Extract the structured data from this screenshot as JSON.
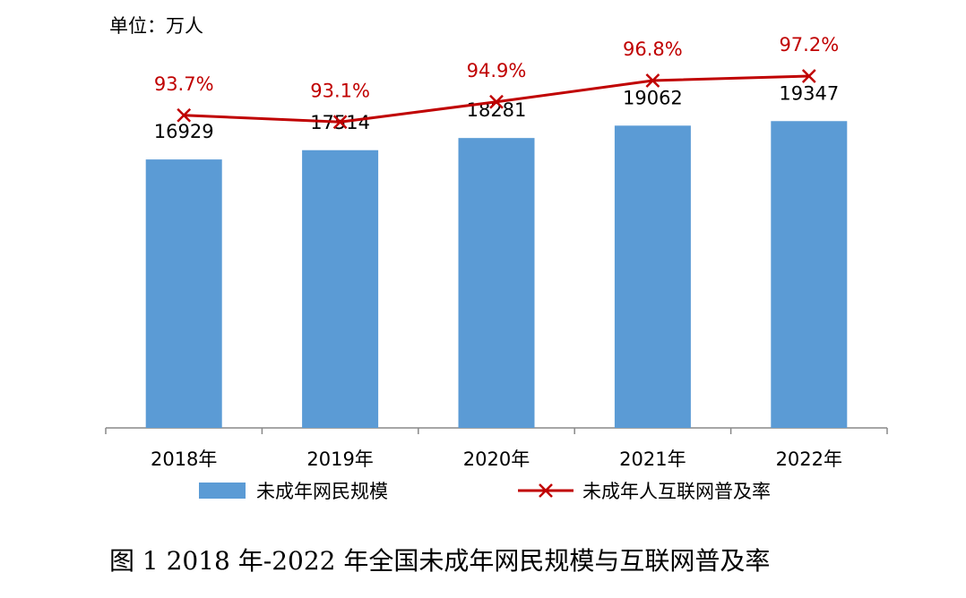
{
  "colors": {
    "bar": "#5B9BD5",
    "line": "#C00000",
    "axis": "#888888"
  },
  "chart_data": {
    "type": "bar",
    "unit_label": "单位：万人",
    "categories": [
      "2018年",
      "2019年",
      "2020年",
      "2021年",
      "2022年"
    ],
    "series": [
      {
        "name": "未成年网民规模",
        "type": "bar",
        "values": [
          16929,
          17514,
          18281,
          19062,
          19347
        ],
        "labels": [
          "16929",
          "17514",
          "18281",
          "19062",
          "19347"
        ]
      },
      {
        "name": "未成年人互联网普及率",
        "type": "line",
        "values": [
          93.7,
          93.1,
          94.9,
          96.8,
          97.2
        ],
        "labels": [
          "93.7%",
          "93.1%",
          "94.9%",
          "96.8%",
          "97.2%"
        ]
      }
    ],
    "legend_position": "bottom",
    "grid": false,
    "caption": "图  1 2018 年-2022 年全国未成年网民规模与互联网普及率"
  }
}
